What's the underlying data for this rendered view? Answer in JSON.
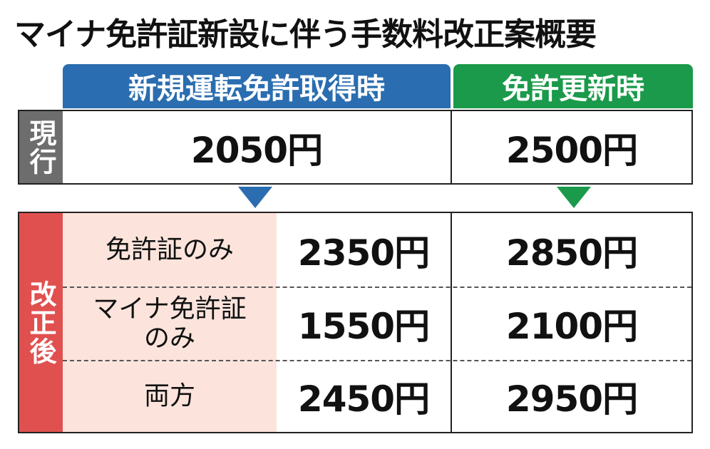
{
  "title": "マイナ免許証新設に伴う手数料改正案概要",
  "columns": [
    "新規運転免許取得時",
    "免許更新時"
  ],
  "current": {
    "label": "現行",
    "values": [
      "2050円",
      "2500円"
    ]
  },
  "revised": {
    "label": "改正後",
    "rows": [
      {
        "label": "免許証のみ",
        "values": [
          "2350円",
          "2850円"
        ]
      },
      {
        "label": "マイナ免許証\nのみ",
        "values": [
          "1550円",
          "2100円"
        ]
      },
      {
        "label": "両方",
        "values": [
          "2450円",
          "2950円"
        ]
      }
    ]
  }
}
